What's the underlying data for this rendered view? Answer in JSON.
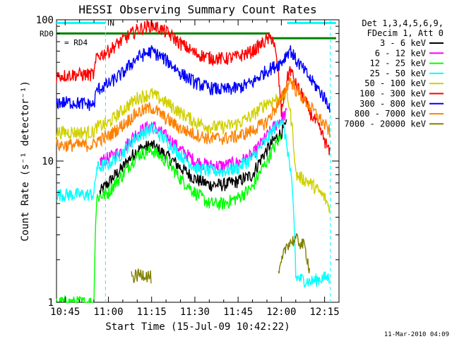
{
  "chart_data": {
    "type": "line",
    "title": "HESSI Observing Summary Count Rates",
    "xlabel": "Start Time (15-Jul-09 10:42:22)",
    "ylabel": "Count Rate (s⁻¹ detector⁻¹)",
    "x_scale": "time",
    "y_scale": "log",
    "xlim": [
      "10:42",
      "12:20"
    ],
    "ylim": [
      1,
      100
    ],
    "x_ticks": [
      "10:45",
      "11:00",
      "11:15",
      "11:30",
      "11:45",
      "12:00",
      "12:15"
    ],
    "y_ticks": [
      "1",
      "10",
      "100"
    ],
    "legend_header": [
      "Det 1,3,4,5,6,9,",
      "FDecim 1, Att 0"
    ],
    "legend_position": "right",
    "timestamp": "11-Mar-2010 04:09",
    "flags": [
      {
        "label": "N",
        "color": "#00ffff",
        "level": 95,
        "segments": [
          [
            "10:42",
            "10:59"
          ],
          [
            "12:02",
            "12:19"
          ]
        ]
      },
      {
        "label": "RD0",
        "color": "#008000",
        "level": 80,
        "segments": [
          [
            "10:42",
            "11:56"
          ]
        ]
      },
      {
        "label": "RD4",
        "color": "#008000",
        "level": 74,
        "segments": [
          [
            "11:56",
            "12:19"
          ]
        ]
      }
    ],
    "saa_lines": [
      "10:59",
      "12:17"
    ],
    "series": [
      {
        "name": "3 - 6 keV",
        "color": "#000000",
        "x": [
          "10:42",
          "10:56",
          "10:57",
          "11:00",
          "11:05",
          "11:10",
          "11:15",
          "11:20",
          "11:25",
          "11:30",
          "11:35",
          "11:40",
          "11:45",
          "11:50",
          "11:55",
          "12:00",
          "12:02"
        ],
        "y": [
          null,
          null,
          6.0,
          7.0,
          9.0,
          12.0,
          13.0,
          11.0,
          9.0,
          7.5,
          6.8,
          6.8,
          7.2,
          8.0,
          12.0,
          16.0,
          18.0
        ]
      },
      {
        "name": "6 - 12 keV",
        "color": "#ff00ff",
        "x": [
          "10:42",
          "10:56",
          "10:57",
          "11:00",
          "11:05",
          "11:10",
          "11:15",
          "11:20",
          "11:25",
          "11:30",
          "11:35",
          "11:40",
          "11:45",
          "11:50",
          "11:55",
          "12:00",
          "12:02"
        ],
        "y": [
          null,
          null,
          10.0,
          10.5,
          12.0,
          16.0,
          18.0,
          15.0,
          12.0,
          10.0,
          9.3,
          9.3,
          9.8,
          11.0,
          15.0,
          20.0,
          22.0
        ]
      },
      {
        "name": "12 - 25 keV",
        "color": "#00ff00",
        "x": [
          "10:42",
          "10:55",
          "10:56",
          "11:00",
          "11:05",
          "11:10",
          "11:15",
          "11:20",
          "11:25",
          "11:30",
          "11:35",
          "11:40",
          "11:45",
          "11:50",
          "11:55",
          "12:00",
          "12:01"
        ],
        "y": [
          1.0,
          1.0,
          5.5,
          6.0,
          8.0,
          11.0,
          12.0,
          10.0,
          7.5,
          6.0,
          5.0,
          5.0,
          5.5,
          6.5,
          10.0,
          15.0,
          null
        ]
      },
      {
        "name": "25 - 50 keV",
        "color": "#00ffff",
        "x": [
          "10:42",
          "10:48",
          "10:55",
          "10:56",
          "11:00",
          "11:05",
          "11:10",
          "11:15",
          "11:20",
          "11:25",
          "11:30",
          "11:35",
          "11:40",
          "11:45",
          "11:50",
          "11:55",
          "12:00",
          "12:05",
          "12:10",
          "12:15",
          "12:17"
        ],
        "y": [
          5.8,
          5.8,
          5.8,
          9.0,
          9.5,
          11.5,
          15.0,
          17.0,
          14.0,
          11.0,
          9.0,
          8.5,
          8.5,
          9.0,
          10.5,
          14.0,
          20.0,
          1.5,
          1.4,
          1.5,
          1.5
        ]
      },
      {
        "name": "50 - 100 keV",
        "color": "#d0d000",
        "x": [
          "10:42",
          "10:48",
          "10:55",
          "10:56",
          "11:00",
          "11:05",
          "11:10",
          "11:15",
          "11:20",
          "11:25",
          "11:30",
          "11:35",
          "11:40",
          "11:45",
          "11:50",
          "11:55",
          "12:00",
          "12:02",
          "12:05",
          "12:10",
          "12:15",
          "12:17"
        ],
        "y": [
          16.0,
          16.0,
          16.0,
          17.5,
          18.5,
          23.0,
          28.0,
          30.0,
          26.0,
          22.0,
          19.0,
          17.5,
          17.5,
          18.5,
          21.0,
          26.0,
          28.0,
          30.0,
          8.0,
          7.0,
          5.5,
          4.5
        ]
      },
      {
        "name": "100 - 300 keV",
        "color": "#ff0000",
        "x": [
          "10:42",
          "10:48",
          "10:55",
          "10:56",
          "11:00",
          "11:05",
          "11:10",
          "11:15",
          "11:20",
          "11:25",
          "11:30",
          "11:35",
          "11:40",
          "11:45",
          "11:50",
          "11:55",
          "11:57",
          "12:00",
          "12:03",
          "12:05",
          "12:10",
          "12:15",
          "12:17"
        ],
        "y": [
          40.0,
          41.0,
          41.0,
          55.0,
          60.0,
          72.0,
          85.0,
          92.0,
          82.0,
          68.0,
          58.0,
          54.0,
          53.0,
          55.0,
          60.0,
          72.0,
          75.0,
          22.0,
          45.0,
          35.0,
          22.0,
          14.0,
          11.0
        ]
      },
      {
        "name": "300 - 800 keV",
        "color": "#0000ff",
        "x": [
          "10:42",
          "10:48",
          "10:55",
          "10:56",
          "11:00",
          "11:05",
          "11:10",
          "11:15",
          "11:20",
          "11:25",
          "11:30",
          "11:35",
          "11:40",
          "11:45",
          "11:50",
          "11:55",
          "11:57",
          "12:00",
          "12:03",
          "12:05",
          "12:10",
          "12:15",
          "12:17"
        ],
        "y": [
          26.0,
          26.0,
          25.0,
          32.0,
          35.0,
          42.0,
          54.0,
          60.0,
          52.0,
          42.0,
          36.0,
          33.0,
          32.0,
          33.0,
          36.0,
          44.0,
          46.0,
          50.0,
          62.0,
          52.0,
          38.0,
          28.0,
          24.0
        ]
      },
      {
        "name": "800 - 7000 keV",
        "color": "#ff8000",
        "x": [
          "10:42",
          "10:48",
          "10:55",
          "10:56",
          "11:00",
          "11:05",
          "11:10",
          "11:15",
          "11:20",
          "11:25",
          "11:30",
          "11:35",
          "11:40",
          "11:45",
          "11:50",
          "11:55",
          "12:00",
          "12:03",
          "12:05",
          "12:10",
          "12:15",
          "12:17"
        ],
        "y": [
          13.0,
          13.0,
          13.0,
          14.0,
          15.0,
          18.0,
          22.0,
          24.0,
          20.0,
          17.0,
          15.5,
          14.5,
          14.5,
          15.0,
          16.5,
          19.0,
          27.0,
          38.0,
          32.0,
          24.0,
          18.0,
          16.0
        ]
      },
      {
        "name": "7000 - 20000 keV",
        "color": "#808000",
        "x": [
          "10:42",
          "11:07",
          "11:08",
          "11:12",
          "11:15",
          "11:16",
          "11:58",
          "11:59",
          "12:02",
          "12:05",
          "12:08",
          "12:10",
          "12:11"
        ],
        "y": [
          null,
          null,
          1.5,
          1.6,
          1.5,
          null,
          null,
          1.5,
          2.6,
          2.8,
          2.5,
          1.6,
          null
        ]
      }
    ]
  }
}
